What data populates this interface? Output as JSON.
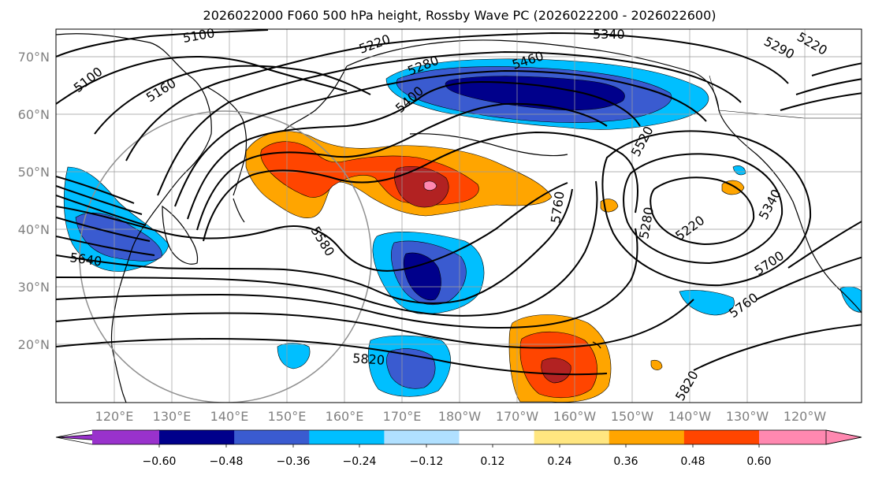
{
  "title": "2026022000 F060 500 hPa height, Rossby Wave PC (2026022200 - 2026022600)",
  "lat_labels": [
    "70°N",
    "60°N",
    "50°N",
    "40°N",
    "30°N",
    "20°N"
  ],
  "lon_labels": [
    "120°E",
    "130°E",
    "140°E",
    "150°E",
    "160°E",
    "170°E",
    "180°W",
    "170°W",
    "160°W",
    "150°W",
    "140°W",
    "130°W",
    "120°W"
  ],
  "contour_labels": [
    "5100",
    "5100",
    "5160",
    "5220",
    "5280",
    "5340",
    "5400",
    "5460",
    "5520",
    "5580",
    "5640",
    "5760",
    "5280",
    "5220",
    "5340",
    "5700",
    "5760",
    "5820",
    "5820",
    "5290",
    "5220"
  ],
  "colorbar": {
    "tick_labels": [
      "−0.60",
      "−0.48",
      "−0.36",
      "−0.24",
      "−0.12",
      "0.12",
      "0.24",
      "0.36",
      "0.48",
      "0.60"
    ],
    "colors": [
      "#9932cc",
      "#00008b",
      "#3a5bd0",
      "#00bfff",
      "#b0e0ff",
      "#ffffff",
      "#ffe680",
      "#ffa500",
      "#ff4500",
      "#b22222",
      "#ff88b0"
    ]
  },
  "shading_colors": {
    "neg_light": "#00bfff",
    "neg_mid": "#3a5bd0",
    "neg_dark": "#00008b",
    "pos_light": "#ffa500",
    "pos_mid": "#ff4500",
    "pos_dark": "#b22222",
    "pos_max": "#ff88b0"
  }
}
